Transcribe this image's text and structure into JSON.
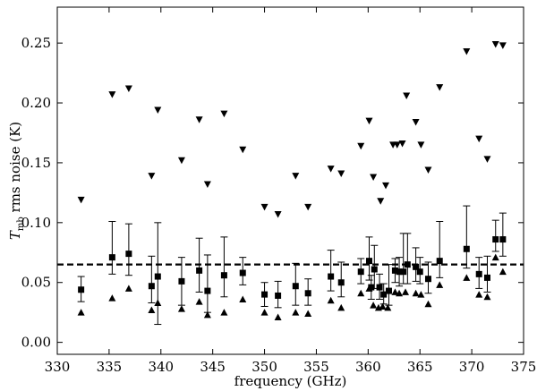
{
  "chart_data": {
    "type": "scatter",
    "xlabel": "frequency (GHz)",
    "ylabel": "T_mb rms noise (K)",
    "ylabel_main": "T",
    "ylabel_sub": "mb",
    "ylabel_rest": " rms noise (K)",
    "xlim": [
      330,
      375
    ],
    "ylim": [
      -0.01,
      0.28
    ],
    "xticks": [
      330,
      335,
      340,
      345,
      350,
      355,
      360,
      365,
      370,
      375
    ],
    "yticks": [
      0.0,
      0.05,
      0.1,
      0.15,
      0.2,
      0.25
    ],
    "xtick_labels": [
      "330",
      "335",
      "340",
      "345",
      "350",
      "355",
      "360",
      "365",
      "370",
      "375"
    ],
    "ytick_labels": [
      "0.00",
      "0.05",
      "0.10",
      "0.15",
      "0.20",
      "0.25"
    ],
    "reference_line": {
      "y": 0.065,
      "style": "dashed"
    },
    "series": [
      {
        "marker": "triangle-down",
        "x": [
          332.3,
          335.3,
          336.9,
          339.1,
          339.7,
          342.0,
          343.7,
          344.5,
          346.1,
          347.9,
          350.0,
          351.3,
          353.0,
          354.2,
          356.4,
          357.4,
          359.3,
          360.1,
          360.5,
          361.2,
          361.7,
          362.4,
          362.8,
          363.3,
          363.7,
          364.6,
          365.1,
          365.8,
          366.9,
          369.5,
          370.7,
          371.5,
          372.3,
          373.0
        ],
        "values": [
          0.119,
          0.207,
          0.212,
          0.139,
          0.194,
          0.152,
          0.186,
          0.132,
          0.191,
          0.161,
          0.113,
          0.107,
          0.139,
          0.113,
          0.145,
          0.141,
          0.164,
          0.185,
          0.138,
          0.118,
          0.131,
          0.165,
          0.165,
          0.166,
          0.206,
          0.184,
          0.165,
          0.144,
          0.213,
          0.243,
          0.17,
          0.153,
          0.249,
          0.248
        ]
      },
      {
        "marker": "square",
        "error_bars": true,
        "x": [
          332.3,
          335.3,
          336.9,
          339.1,
          339.7,
          342.0,
          343.7,
          344.5,
          346.1,
          347.9,
          350.0,
          351.3,
          353.0,
          354.2,
          356.4,
          357.4,
          359.3,
          360.1,
          360.3,
          360.6,
          361.1,
          361.5,
          362.0,
          362.6,
          363.0,
          363.4,
          363.8,
          364.6,
          365.0,
          365.8,
          366.9,
          369.5,
          370.7,
          371.5,
          372.3,
          373.0
        ],
        "values": [
          0.044,
          0.071,
          0.074,
          0.047,
          0.055,
          0.051,
          0.06,
          0.043,
          0.056,
          0.058,
          0.04,
          0.039,
          0.047,
          0.041,
          0.055,
          0.05,
          0.059,
          0.068,
          0.046,
          0.061,
          0.046,
          0.04,
          0.043,
          0.06,
          0.059,
          0.059,
          0.065,
          0.063,
          0.059,
          0.053,
          0.068,
          0.078,
          0.057,
          0.054,
          0.086,
          0.086
        ],
        "err_low": [
          0.01,
          0.014,
          0.018,
          0.014,
          0.04,
          0.02,
          0.018,
          0.018,
          0.018,
          0.01,
          0.01,
          0.01,
          0.016,
          0.01,
          0.012,
          0.012,
          0.01,
          0.016,
          0.01,
          0.016,
          0.01,
          0.008,
          0.012,
          0.01,
          0.012,
          0.01,
          0.016,
          0.012,
          0.01,
          0.012,
          0.014,
          0.016,
          0.012,
          0.012,
          0.01,
          0.014
        ],
        "err_high": [
          0.011,
          0.03,
          0.025,
          0.025,
          0.045,
          0.02,
          0.027,
          0.03,
          0.032,
          0.013,
          0.01,
          0.012,
          0.019,
          0.012,
          0.022,
          0.017,
          0.011,
          0.02,
          0.01,
          0.02,
          0.011,
          0.009,
          0.022,
          0.01,
          0.012,
          0.032,
          0.026,
          0.016,
          0.012,
          0.014,
          0.033,
          0.036,
          0.014,
          0.018,
          0.016,
          0.022
        ]
      },
      {
        "marker": "triangle-up",
        "x": [
          332.3,
          335.3,
          336.9,
          339.1,
          339.7,
          342.0,
          343.7,
          344.5,
          346.1,
          347.9,
          350.0,
          351.3,
          353.0,
          354.2,
          356.4,
          357.4,
          359.3,
          360.1,
          360.5,
          361.0,
          361.4,
          361.9,
          362.6,
          363.0,
          363.6,
          364.6,
          365.1,
          365.8,
          366.9,
          369.5,
          370.7,
          371.5,
          372.3,
          373.0
        ],
        "values": [
          0.025,
          0.037,
          0.045,
          0.027,
          0.033,
          0.028,
          0.034,
          0.023,
          0.025,
          0.036,
          0.025,
          0.021,
          0.025,
          0.024,
          0.035,
          0.029,
          0.041,
          0.045,
          0.031,
          0.029,
          0.03,
          0.029,
          0.042,
          0.041,
          0.042,
          0.041,
          0.04,
          0.032,
          0.048,
          0.054,
          0.04,
          0.038,
          0.071,
          0.059
        ]
      }
    ]
  }
}
